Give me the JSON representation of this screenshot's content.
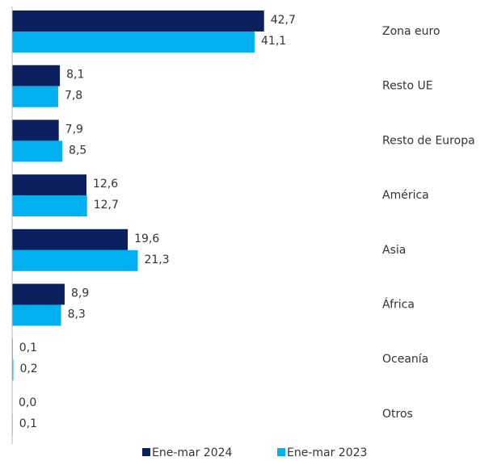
{
  "chart_data": {
    "type": "hbar",
    "categories": [
      "Zona euro",
      "Resto UE",
      "Resto de Europa",
      "América",
      "Asia",
      "África",
      "Oceanía",
      "Otros"
    ],
    "series": [
      {
        "name": "Ene-mar 2024",
        "color": "#0c1f5e",
        "values": [
          42.7,
          8.1,
          7.9,
          12.6,
          19.6,
          8.9,
          0.1,
          0.0
        ],
        "value_labels": [
          "42,7",
          "8,1",
          "7,9",
          "12,6",
          "19,6",
          "8,9",
          "0,1",
          "0,0"
        ]
      },
      {
        "name": "Ene-mar 2023",
        "color": "#00b0f0",
        "values": [
          41.1,
          7.8,
          8.5,
          12.7,
          21.3,
          8.3,
          0.2,
          0.1
        ],
        "value_labels": [
          "41,1",
          "7,8",
          "8,5",
          "12,7",
          "21,3",
          "8,3",
          "0,2",
          "0,1"
        ]
      }
    ],
    "xlim": [
      0,
      80
    ],
    "legend": "bottom"
  }
}
